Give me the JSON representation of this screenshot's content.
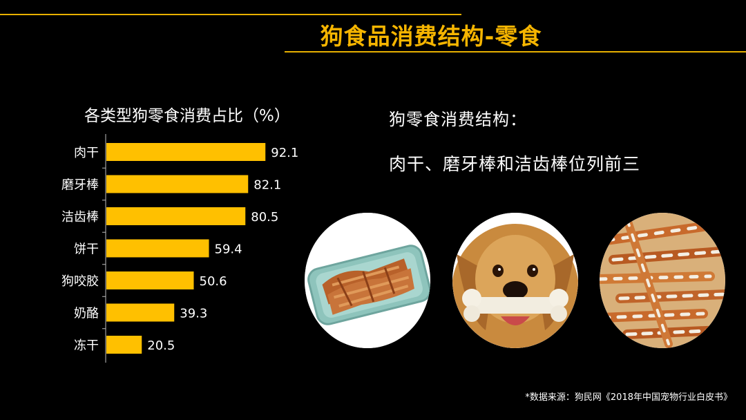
{
  "page": {
    "title": "狗食品消费结构-零食"
  },
  "summary": {
    "heading": "狗零食消费结构：",
    "text": "肉干、磨牙棒和洁齿棒位列前三"
  },
  "photos": {
    "jerky": "jerky-platter-photo",
    "dog": "dog-with-bone-photo",
    "sticks": "chew-sticks-photo"
  },
  "source": "*数据来源：狗民网《2018年中国宠物行业白皮书》",
  "colors": {
    "accent": "#f6b500",
    "bar": "#ffc000",
    "background": "#000000"
  },
  "chart_data": {
    "type": "bar",
    "orientation": "horizontal",
    "title": "各类型狗零食消费占比（%）",
    "categories": [
      "肉干",
      "磨牙棒",
      "洁齿棒",
      "饼干",
      "狗咬胶",
      "奶酪",
      "冻干"
    ],
    "values": [
      92.1,
      82.1,
      80.5,
      59.4,
      50.6,
      39.3,
      20.5
    ],
    "value_labels": [
      "92.1",
      "82.1",
      "80.5",
      "59.4",
      "50.6",
      "39.3",
      "20.5"
    ],
    "xlim": [
      0,
      100
    ],
    "grid": false,
    "legend": "none"
  }
}
